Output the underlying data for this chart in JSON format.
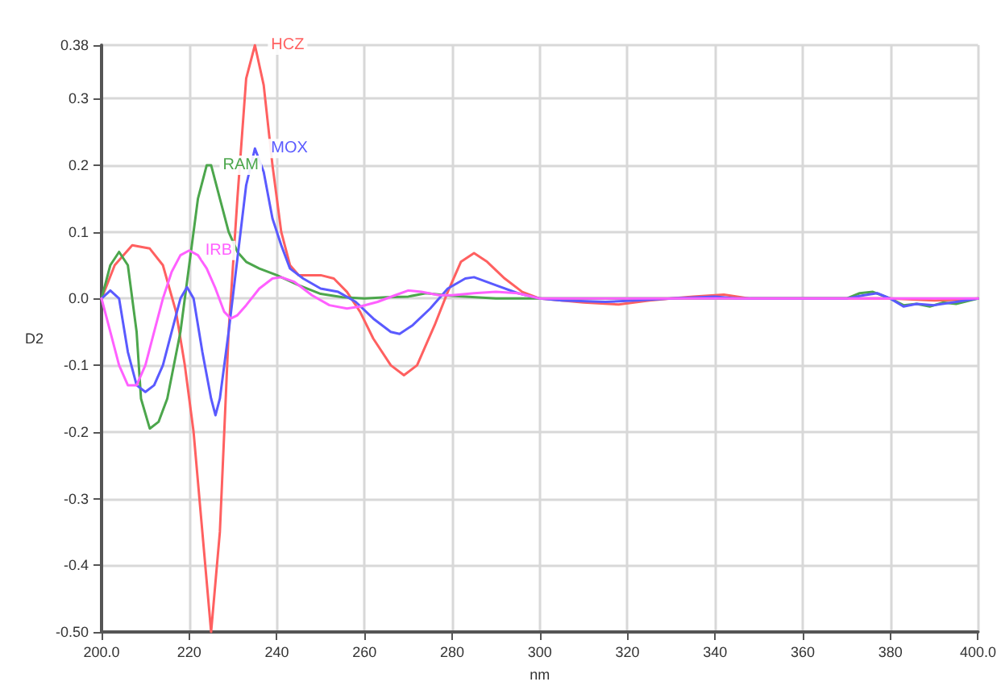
{
  "chart_data": {
    "type": "line",
    "xlabel": "nm",
    "ylabel": "D2",
    "xlim": [
      200,
      400
    ],
    "xticks": [
      {
        "value": 200,
        "label": "200.0"
      },
      220,
      240,
      260,
      280,
      300,
      320,
      340,
      360,
      380,
      {
        "value": 400,
        "label": "400.0"
      }
    ],
    "ylim": [
      -0.5,
      0.38
    ],
    "yticks": [
      {
        "value": -0.5,
        "label": "-0.50"
      },
      -0.4,
      -0.3,
      -0.2,
      -0.1,
      {
        "value": 0,
        "label": "0.0"
      },
      0.1,
      0.2,
      0.3,
      0.38
    ],
    "grid": true,
    "legend": false,
    "marker": "none",
    "line_style": "solid",
    "series": [
      {
        "name": "HCZ",
        "color": "#ff6060",
        "x": [
          200,
          203,
          207,
          211,
          214,
          217,
          219,
          221,
          223,
          225,
          227,
          229,
          231,
          233,
          235,
          237,
          239,
          241,
          243,
          245,
          250,
          253,
          256,
          259,
          262,
          266,
          269,
          272,
          276,
          279,
          282,
          285,
          288,
          292,
          296,
          300,
          305,
          310,
          318,
          325,
          330,
          335,
          342,
          348,
          360,
          380,
          390,
          395,
          400
        ],
        "values": [
          0,
          0.05,
          0.08,
          0.075,
          0.05,
          -0.02,
          -0.1,
          -0.2,
          -0.35,
          -0.5,
          -0.35,
          -0.05,
          0.15,
          0.33,
          0.38,
          0.32,
          0.2,
          0.1,
          0.05,
          0.035,
          0.035,
          0.03,
          0.01,
          -0.02,
          -0.06,
          -0.1,
          -0.115,
          -0.1,
          -0.04,
          0.01,
          0.055,
          0.068,
          0.055,
          0.03,
          0.01,
          0,
          -0.003,
          -0.006,
          -0.009,
          -0.003,
          0,
          0.003,
          0.006,
          0,
          0,
          0,
          -0.003,
          -0.002,
          0
        ]
      },
      {
        "name": "RAM",
        "color": "#4ca64c",
        "x": [
          200,
          202,
          204,
          206,
          208,
          209,
          211,
          213,
          215,
          218,
          220,
          222,
          224,
          225,
          227,
          229,
          231,
          233,
          236,
          240,
          245,
          250,
          255,
          260,
          265,
          270,
          274,
          280,
          290,
          300,
          370,
          373,
          376,
          378,
          380,
          383,
          386,
          389,
          392,
          395,
          400
        ],
        "values": [
          0,
          0.05,
          0.07,
          0.05,
          -0.05,
          -0.15,
          -0.195,
          -0.185,
          -0.15,
          -0.05,
          0.05,
          0.15,
          0.2,
          0.2,
          0.15,
          0.1,
          0.07,
          0.055,
          0.045,
          0.035,
          0.02,
          0.007,
          0.002,
          0,
          0.002,
          0.003,
          0.008,
          0.004,
          0,
          0,
          0,
          0.008,
          0.01,
          0.005,
          0,
          -0.01,
          -0.008,
          -0.012,
          -0.006,
          -0.008,
          0
        ]
      },
      {
        "name": "MOX",
        "color": "#5a5aff",
        "x": [
          200,
          202,
          204,
          206,
          208,
          210,
          212,
          214,
          216,
          218,
          219.5,
          221,
          223,
          225,
          226,
          227,
          229,
          231,
          233,
          235,
          237,
          239,
          241,
          243,
          246,
          250,
          254,
          258,
          262,
          266,
          268,
          271,
          275,
          279,
          283,
          285,
          290,
          295,
          300,
          305,
          315,
          322,
          330,
          340,
          345,
          370,
          374,
          377,
          380,
          383,
          386,
          390,
          395,
          400
        ],
        "values": [
          0,
          0.012,
          0,
          -0.08,
          -0.13,
          -0.14,
          -0.13,
          -0.1,
          -0.05,
          0,
          0.017,
          0,
          -0.08,
          -0.15,
          -0.175,
          -0.15,
          -0.05,
          0.06,
          0.17,
          0.225,
          0.19,
          0.12,
          0.08,
          0.045,
          0.03,
          0.015,
          0.01,
          -0.005,
          -0.03,
          -0.05,
          -0.053,
          -0.04,
          -0.015,
          0.015,
          0.03,
          0.032,
          0.02,
          0.008,
          0,
          -0.003,
          -0.005,
          -0.003,
          0,
          0.003,
          0,
          0,
          0.005,
          0.008,
          0,
          -0.012,
          -0.008,
          -0.01,
          -0.005,
          0
        ]
      },
      {
        "name": "IRB",
        "color": "#ff60ff",
        "x": [
          200,
          202,
          204,
          206,
          208,
          210,
          212,
          214,
          216,
          218,
          220,
          222,
          224,
          226,
          228,
          229.5,
          231,
          233,
          236,
          239,
          241,
          244,
          248,
          252,
          256,
          259,
          263,
          267,
          270,
          273,
          277,
          280,
          285,
          290,
          295,
          300,
          400
        ],
        "values": [
          0,
          -0.05,
          -0.1,
          -0.13,
          -0.13,
          -0.1,
          -0.05,
          0,
          0.04,
          0.065,
          0.072,
          0.065,
          0.045,
          0.015,
          -0.02,
          -0.03,
          -0.025,
          -0.01,
          0.015,
          0.03,
          0.032,
          0.025,
          0.005,
          -0.01,
          -0.015,
          -0.012,
          -0.005,
          0.005,
          0.012,
          0.01,
          0.005,
          0.005,
          0.008,
          0.01,
          0.008,
          0,
          0
        ]
      }
    ]
  }
}
